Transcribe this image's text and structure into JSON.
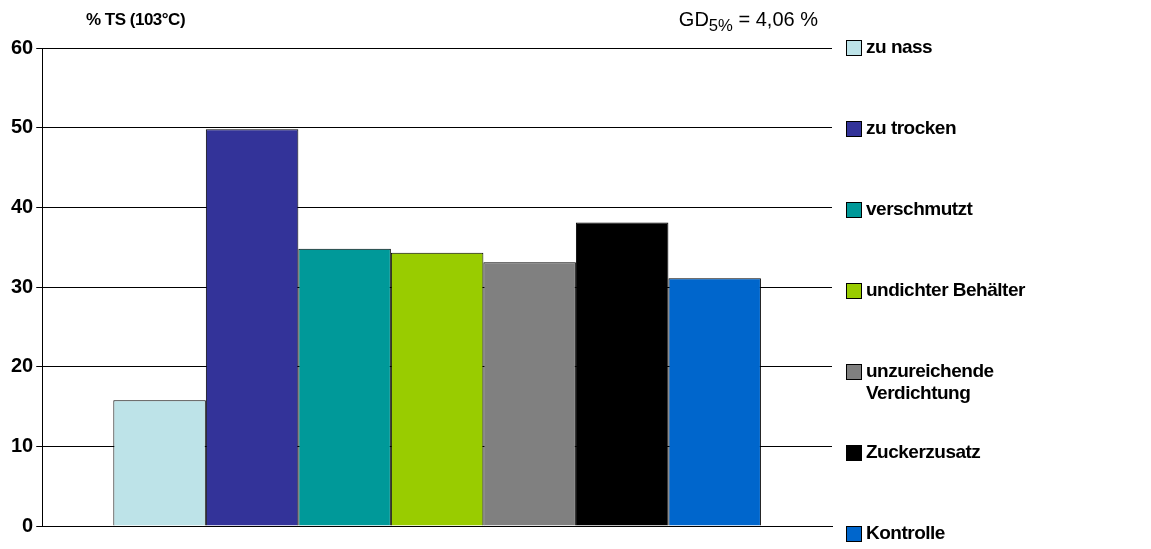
{
  "chart_data": {
    "type": "bar",
    "ylabel": "% TS (103°C)",
    "annotations": [
      "GD$_{5%}$ = 4,06 %"
    ],
    "categories": [
      null
    ],
    "series": [
      {
        "name": "zu nass",
        "color": "#bde3e8",
        "values": [
          15.8
        ]
      },
      {
        "name": "zu trocken",
        "color": "#333399",
        "values": [
          49.8
        ]
      },
      {
        "name": "verschmutzt",
        "color": "#009999",
        "values": [
          34.8
        ]
      },
      {
        "name": "undichter Behälter",
        "color": "#99cc00",
        "values": [
          34.3
        ]
      },
      {
        "name": "unzureichende Verdichtung",
        "color": "#808080",
        "values": [
          33.1
        ]
      },
      {
        "name": "Zuckerzusatz",
        "color": "#000000",
        "values": [
          38.1
        ]
      },
      {
        "name": "Kontrolle",
        "color": "#0066cc",
        "values": [
          31.1
        ]
      }
    ],
    "ylim": [
      0,
      60
    ],
    "yticks": [
      0,
      10,
      20,
      30,
      40,
      50,
      60
    ],
    "grid": "y",
    "legend": "right",
    "tick_labels": "y"
  }
}
